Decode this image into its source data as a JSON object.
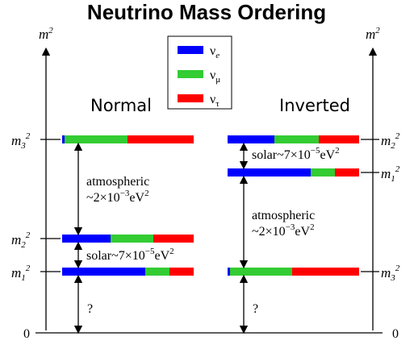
{
  "title": "Neutrino Mass Ordering",
  "axis_label": {
    "base": "m",
    "sup": "2"
  },
  "legend": [
    {
      "base": "ν",
      "sub": "e"
    },
    {
      "base": "ν",
      "sub": "μ"
    },
    {
      "base": "ν",
      "sub": "τ"
    }
  ],
  "orderings": [
    "Normal",
    "Inverted"
  ],
  "mass_labels": [
    {
      "base": "m",
      "sub": "3",
      "sup": "2"
    },
    {
      "base": "m",
      "sub": "2",
      "sup": "2"
    },
    {
      "base": "m",
      "sub": "1",
      "sup": "2"
    }
  ],
  "zero": "0",
  "atmospheric": {
    "name": "atmospheric",
    "value": "~2×10",
    "exp": "−3",
    "unit": "eV",
    "unit_exp": "2"
  },
  "solar": {
    "value": "solar~7×10",
    "exp": "−5",
    "unit": "eV",
    "unit_exp": "2"
  },
  "unknown": "?"
}
